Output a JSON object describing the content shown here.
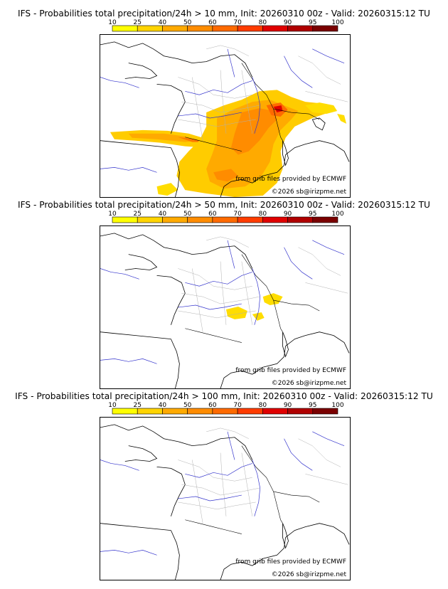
{
  "panels": [
    {
      "title": "IFS - Probabilities total precipitation/24h > 10 mm, Init: 20260310 00z - Valid: 20260315:12 TU",
      "threshold_mm": 10,
      "credit_source": "from grib files provided by ECMWF",
      "credit_site": "©2026 sb@irizpme.net"
    },
    {
      "title": "IFS - Probabilities total precipitation/24h > 50 mm, Init: 20260310 00z - Valid: 20260315:12 TU",
      "threshold_mm": 50,
      "credit_source": "from grib files provided by ECMWF",
      "credit_site": "©2026 sb@irizpme.net"
    },
    {
      "title": "IFS - Probabilities total precipitation/24h > 100 mm, Init: 20260310 00z - Valid: 20260315:12 TU",
      "threshold_mm": 100,
      "credit_source": "from grib files provided by ECMWF",
      "credit_site": "©2026 sb@irizpme.net"
    }
  ],
  "legend": {
    "ticks": [
      "10",
      "25",
      "40",
      "50",
      "60",
      "70",
      "80",
      "90",
      "95",
      "100"
    ],
    "colors": [
      "#ffff00",
      "#ffd400",
      "#ffaa00",
      "#ff8c00",
      "#ff6a00",
      "#ff3c00",
      "#e00000",
      "#b00000",
      "#7a0000"
    ]
  },
  "map_colors": {
    "coast": "#000000",
    "borders": "#000000",
    "regions": "#a8a8a8",
    "rivers": "#3333cc"
  }
}
